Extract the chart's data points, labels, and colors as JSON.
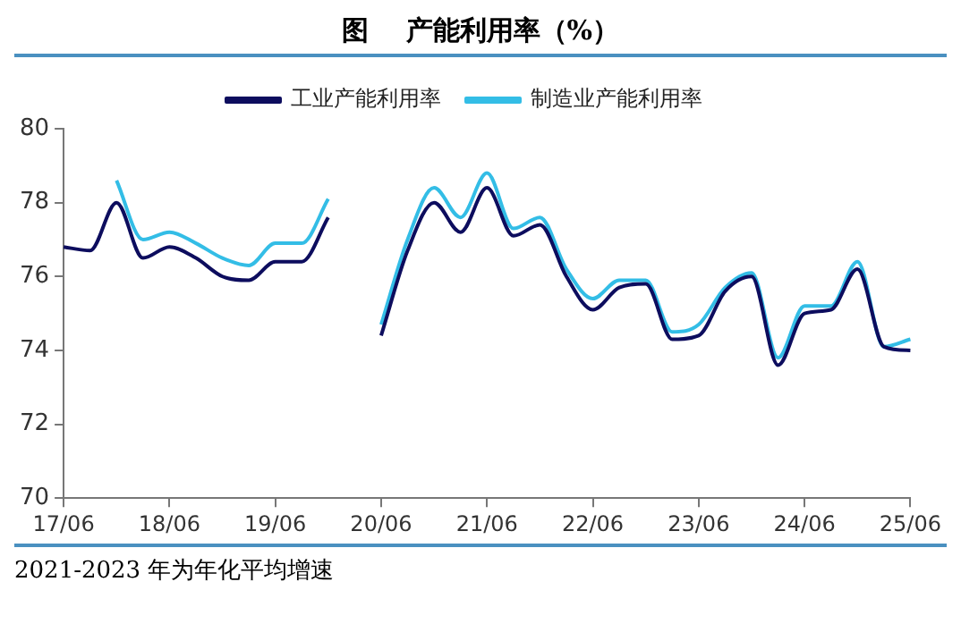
{
  "chart_data": {
    "type": "line",
    "title": "图    产能利用率（%）",
    "categories": [
      "17/06",
      null,
      null,
      null,
      "18/06",
      null,
      null,
      null,
      "19/06",
      null,
      null,
      null,
      "20/06",
      null,
      null,
      null,
      "21/06",
      null,
      null,
      null,
      "22/06",
      null,
      null,
      null,
      "23/06",
      null,
      null,
      null,
      "24/06",
      null,
      null,
      null,
      "25/06"
    ],
    "series": [
      {
        "name": "工业产能利用率",
        "color": "#0d0d5e",
        "values": [
          76.8,
          76.7,
          78.0,
          76.5,
          76.8,
          76.5,
          76.0,
          75.9,
          76.4,
          76.4,
          77.6,
          null,
          74.4,
          76.7,
          78.0,
          77.2,
          78.4,
          77.1,
          77.4,
          76.0,
          75.1,
          75.7,
          75.8,
          74.3,
          74.4,
          75.6,
          76.0,
          73.6,
          75.0,
          75.1,
          76.2,
          74.1,
          74.0
        ]
      },
      {
        "name": "制造业产能利用率",
        "color": "#33bde6",
        "values": [
          null,
          null,
          78.6,
          77.0,
          77.2,
          76.9,
          76.5,
          76.3,
          76.9,
          76.9,
          78.1,
          null,
          74.7,
          77.0,
          78.4,
          77.6,
          78.8,
          77.3,
          77.6,
          76.2,
          75.4,
          75.9,
          75.9,
          74.5,
          74.7,
          75.7,
          76.1,
          73.8,
          75.2,
          75.2,
          76.4,
          74.1,
          74.3
        ]
      }
    ],
    "ylim": [
      70,
      80
    ],
    "yticks": [
      70,
      72,
      74,
      76,
      78,
      80
    ],
    "grid": false,
    "legend": "top",
    "marker": "none",
    "line_style": "solid",
    "annotations": [
      "2021-2023 年为年化平均增速"
    ]
  }
}
